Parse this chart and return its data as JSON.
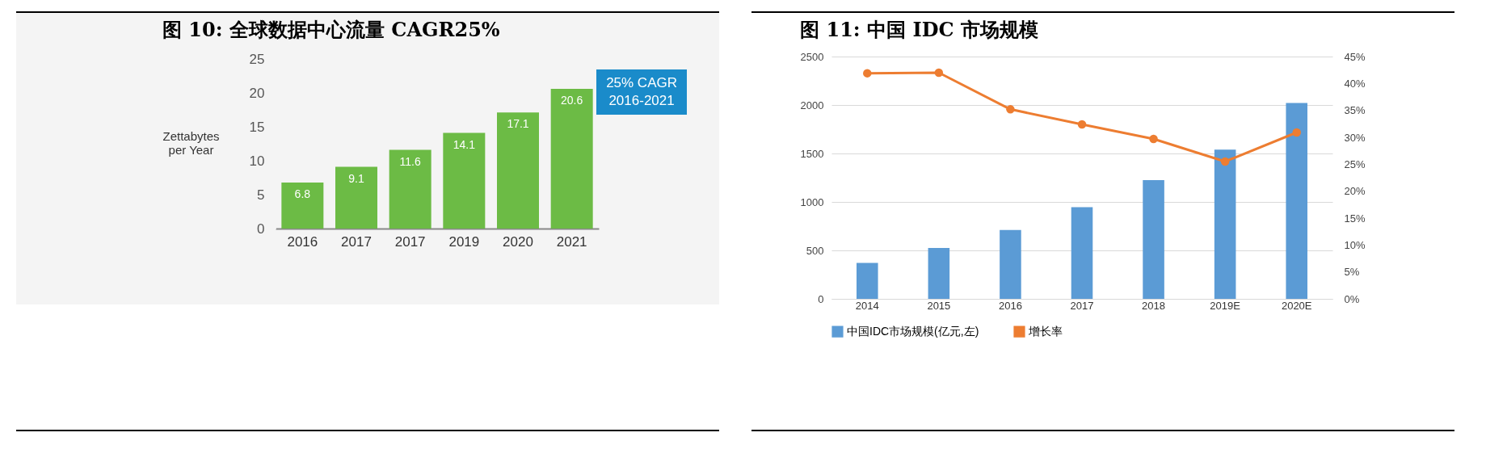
{
  "chart_data": [
    {
      "type": "bar",
      "title": "图 10: 全球数据中心流量 CAGR25%",
      "ylabel": "Zettabytes per Year",
      "categories": [
        "2016",
        "2017",
        "2017",
        "2019",
        "2020",
        "2021"
      ],
      "values": [
        6.8,
        9.1,
        11.6,
        14.1,
        17.1,
        20.6
      ],
      "color": "#6cbb45",
      "data_labels": true,
      "ylim": [
        0,
        25
      ],
      "yticks": [
        0,
        5,
        10,
        15,
        20,
        25
      ],
      "grid": false,
      "legend": false,
      "annotations": [
        "25% CAGR 2016-2021"
      ]
    },
    {
      "type": "bar",
      "title": "图 11: 中国 IDC 市场规模",
      "categories": [
        "2014",
        "2015",
        "2016",
        "2017",
        "2018",
        "2019E",
        "2020E"
      ],
      "series": [
        {
          "name": "中国IDC市场规模(亿元,左)",
          "type": "bar",
          "color": "#5b9bd5",
          "values": [
            370,
            525,
            710,
            945,
            1225,
            1540,
            2020
          ]
        },
        {
          "name": "增长率",
          "type": "line",
          "axis": "y2",
          "color": "#ed7d31",
          "values": [
            41.9,
            42.0,
            35.2,
            32.4,
            29.7,
            25.5,
            30.9
          ]
        }
      ],
      "ylim": [
        0,
        2500
      ],
      "yticks": [
        0,
        500,
        1000,
        1500,
        2000,
        2500
      ],
      "y2lim": [
        0,
        45
      ],
      "y2ticks": [
        {
          "value": 0,
          "label": "0%"
        },
        {
          "value": 5,
          "label": "5%"
        },
        {
          "value": 10,
          "label": "10%"
        },
        {
          "value": 15,
          "label": "15%"
        },
        {
          "value": 20,
          "label": "20%"
        },
        {
          "value": 25,
          "label": "25%"
        },
        {
          "value": 30,
          "label": "30%"
        },
        {
          "value": 35,
          "label": "35%"
        },
        {
          "value": 40,
          "label": "40%"
        },
        {
          "value": 45,
          "label": "45%"
        }
      ],
      "grid": "y",
      "legend": "bottom",
      "marker": "circle"
    }
  ]
}
